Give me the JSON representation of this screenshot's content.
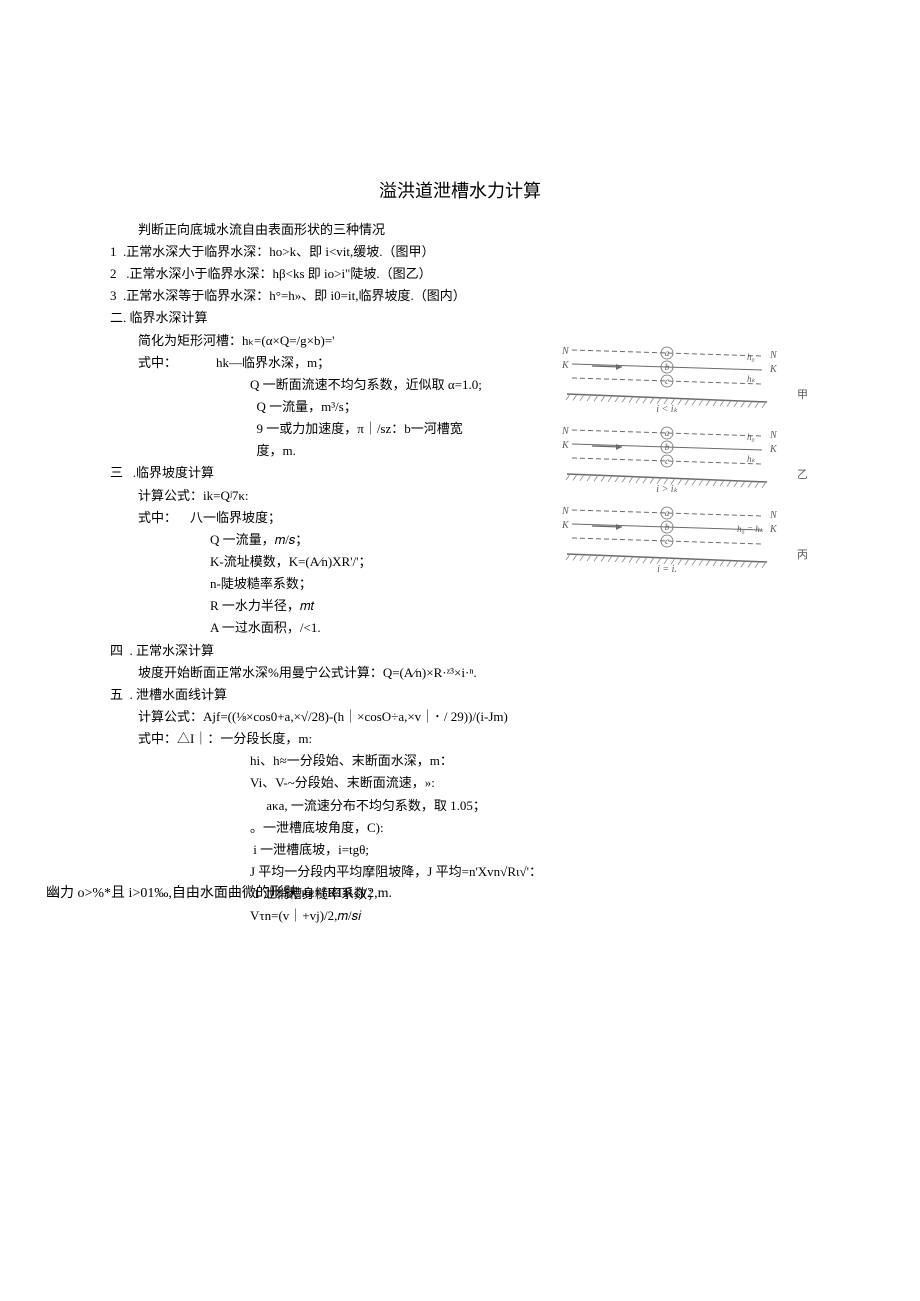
{
  "title": "溢洪道泄槽水力计算",
  "lines": [
    {
      "cls": "indent1",
      "t": "判断正向底城水流自由表面形状的三种情况"
    },
    {
      "cls": "",
      "t": "1  .正常水深大于临界水深：ho>k、即 i<vit,缓坡.（图甲）"
    },
    {
      "cls": "",
      "t": "2   .正常水深小于临界水深：hβ<ks 即 io>i\"陡坡.（图乙）"
    },
    {
      "cls": "",
      "t": "3  .正常水深等于临界水深：h°=h»、即 i0=it,临界坡度.（图内）"
    },
    {
      "cls": "",
      "t": "二. 临界水深计算"
    },
    {
      "cls": "indent1",
      "t": "简化为矩形河槽：hₖ=(α×Q=/g×b)='"
    },
    {
      "cls": "indent1",
      "t": "式中：            hk—临界水深，m；"
    },
    {
      "cls": "indent3",
      "t": "Q 一断面流速不均匀系数，近似取 α=1.0;"
    },
    {
      "cls": "indent3",
      "t": "  Q 一流量，m³/s；"
    },
    {
      "cls": "indent3",
      "t": "  9 一或力加速度，π｜/sz：b一河槽宽"
    },
    {
      "cls": "indent3",
      "t": "  度，m."
    },
    {
      "cls": "",
      "t": "三   .临界坡度计算"
    },
    {
      "cls": "indent1",
      "t": "计算公式：ik=Qʲ7κ:"
    },
    {
      "cls": "indent1",
      "t": "式中：    八一临界坡度；"
    },
    {
      "cls": "indent2",
      "t": "Q 一流量，𝑚/𝑠；"
    },
    {
      "cls": "indent2",
      "t": "K-流址模数，K=(A⁄n)XR'/'；"
    },
    {
      "cls": "indent2",
      "t": "n-陡坡糙率系数；"
    },
    {
      "cls": "indent2",
      "t": "R 一水力半径，𝑚𝑡"
    },
    {
      "cls": "indent2",
      "t": "A 一过水面积，/<1."
    },
    {
      "cls": "",
      "t": "四  . 正常水深计算"
    },
    {
      "cls": "indent1",
      "t": "坡度开始断面正常水深%用曼宁公式计算：Q=(A⁄n)×R·ᶻ³×i·ⁿ."
    },
    {
      "cls": "",
      "t": "五  . 泄槽水面线计算"
    },
    {
      "cls": "indent1",
      "t": "计算公式：Ajf=((⅛×cos0+a,×√/28)-(h｜×cosO÷a,×v｜･ / 29))/(i-Jm)"
    },
    {
      "cls": "indent1",
      "t": "式中：△I｜：一分段长度，m:"
    },
    {
      "cls": "indent3",
      "t": "hi、h≈一分段始、末断面水深，m："
    },
    {
      "cls": "indent3",
      "t": "Vi、V-~分段始、末断面流速，»:"
    },
    {
      "cls": "indent3",
      "t": "     aκa, 一流速分布不均匀系数，取 1.05；"
    },
    {
      "cls": "indent3",
      "t": "。一泄槽底坡角度，C):"
    },
    {
      "cls": "indent3",
      "t": " i 一泄槽底坡，i=tgθ;"
    },
    {
      "cls": "indent3",
      "t": "J 平均一分段内平均摩阻坡降，J 平均=n'Xvn√Rι√'："
    },
    {
      "cls": "indent3",
      "t": " 1 泄梢槽身糙率系数；"
    },
    {
      "cls": "indent3",
      "t": "Vτn=(v｜+vj)/2,𝑚/𝑠𝑖"
    }
  ],
  "bottom": "幽力 o>%*且 i>01‰,自由水面曲微的形肤    ʀᴇ=(RTRₛ)/2,m.",
  "bottom_overlay": "Rᴇ一分段平均水力半径，",
  "diagram": {
    "panels": [
      {
        "label_right": "甲",
        "i_text": "i < iₖ",
        "lines": [
          {
            "tag": "N",
            "y": 0,
            "letter": "a"
          },
          {
            "tag": "K",
            "y": 18,
            "letter": "b",
            "arrow": true
          },
          {
            "tag": "N",
            "y": 0,
            "h": "h₀"
          },
          {
            "tag": "K",
            "y": 18,
            "h": "hₖ"
          }
        ],
        "curve_letters": [
          "a",
          "b",
          "c"
        ]
      },
      {
        "label_right": "乙",
        "i_text": "i > iₖ",
        "curve_letters": [
          "a",
          "b",
          "c"
        ]
      },
      {
        "label_right": "丙",
        "i_text": "i = i.",
        "curve_letters": [
          "a",
          "b",
          "c"
        ],
        "h_eq": "h₀ = hₖ"
      }
    ],
    "colors": {
      "line": "#6b6b6b",
      "text": "#5a5a5a",
      "hatch": "#888888"
    }
  }
}
